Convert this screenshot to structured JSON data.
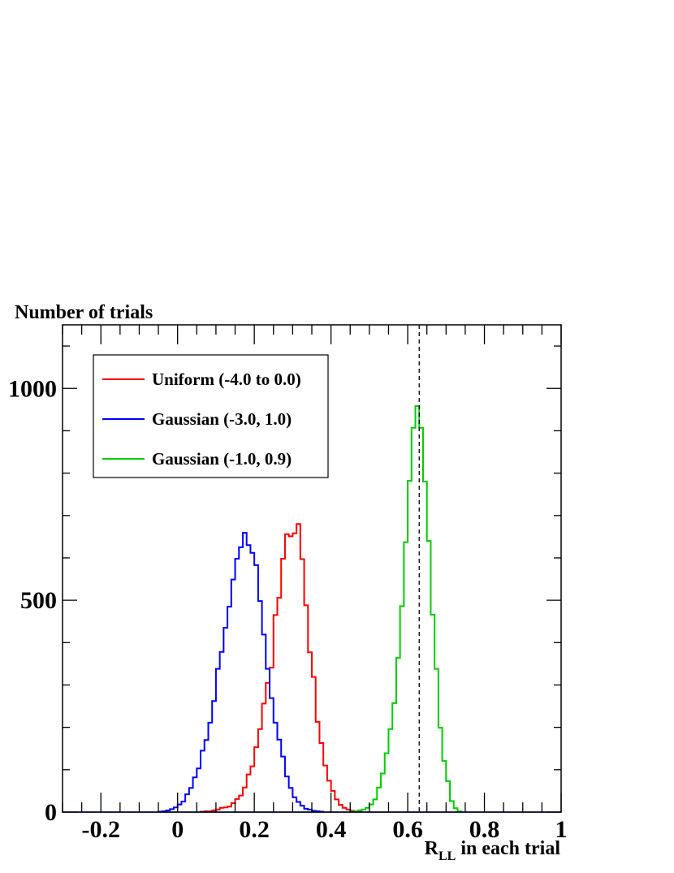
{
  "chart_data": {
    "type": "line",
    "ylabel": "Number of trials",
    "xlabel": {
      "main": "R",
      "sub": "LL",
      "rest": " in each trial"
    },
    "xlim": [
      -0.3,
      1.0
    ],
    "ylim": [
      0,
      1150
    ],
    "x_ticks": [
      "-0.2",
      "0",
      "0.2",
      "0.4",
      "0.6",
      "0.8",
      "1"
    ],
    "x_tick_values": [
      -0.2,
      0,
      0.2,
      0.4,
      0.6,
      0.8,
      1.0
    ],
    "y_ticks": [
      "0",
      "500",
      "1000"
    ],
    "y_tick_values": [
      0,
      500,
      1000
    ],
    "reference_line": {
      "x": 0.63,
      "style": "dashed",
      "color": "#000000"
    },
    "grid": false,
    "legend_position": "top-left",
    "bin_width": 0.01,
    "series": [
      {
        "name": "Uniform (-4.0 to 0.0)",
        "color": "#ff0000",
        "bin_start": 0.06,
        "values": [
          1,
          2,
          2,
          4,
          6,
          10,
          11,
          13,
          21,
          31,
          39,
          58,
          89,
          108,
          153,
          196,
          256,
          305,
          341,
          465,
          506,
          598,
          656,
          651,
          658,
          680,
          597,
          488,
          377,
          319,
          213,
          163,
          110,
          74,
          50,
          30,
          17,
          10,
          6,
          3,
          2,
          1
        ]
      },
      {
        "name": "Gaussian (-3.0, 1.0)",
        "color": "#0000ff",
        "bin_start": -0.05,
        "values": [
          1,
          2,
          4,
          7,
          11,
          18,
          25,
          42,
          57,
          82,
          103,
          145,
          170,
          211,
          262,
          338,
          378,
          435,
          485,
          549,
          598,
          625,
          659,
          630,
          612,
          583,
          498,
          419,
          338,
          269,
          211,
          171,
          131,
          84,
          57,
          35,
          24,
          15,
          8,
          6,
          3,
          2,
          1
        ]
      },
      {
        "name": "Gaussian (-1.0, 0.9)",
        "color": "#00cc00",
        "bin_start": 0.45,
        "values": [
          1,
          2,
          4,
          6,
          10,
          18,
          30,
          58,
          91,
          139,
          196,
          257,
          364,
          486,
          637,
          782,
          907,
          958,
          907,
          780,
          640,
          466,
          338,
          199,
          121,
          73,
          26,
          9,
          2
        ]
      }
    ]
  }
}
